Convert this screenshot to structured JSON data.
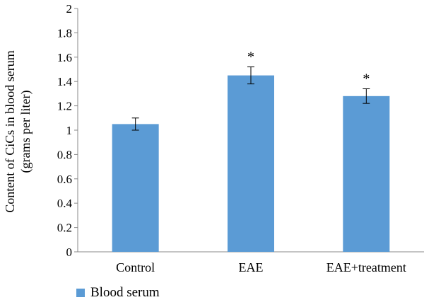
{
  "chart_data": {
    "type": "bar",
    "categories": [
      "Control",
      "EAE",
      "EAE+treatment"
    ],
    "series": [
      {
        "name": "Blood serum",
        "values": [
          1.05,
          1.45,
          1.28
        ],
        "errors": [
          0.05,
          0.07,
          0.06
        ],
        "color": "#5b9bd5"
      }
    ],
    "annotations": [
      "",
      "*",
      "*"
    ],
    "ylabel_line1": "Content of CiCs in blood serum",
    "ylabel_line2": "(grams per liter)",
    "xlabel": "",
    "ylim": [
      0,
      2
    ],
    "yticks": [
      "0",
      "0.2",
      "0.4",
      "0.6",
      "0.8",
      "1",
      "1.2",
      "1.4",
      "1.6",
      "1.8",
      "2"
    ],
    "grid": false,
    "legend_position": "bottom-left"
  }
}
